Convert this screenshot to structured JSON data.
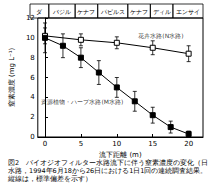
{
  "chart_data": {
    "type": "line",
    "title": "図2　バイオジオフィルター水路流下に伴う窒素濃度の変化（日水路，1994年6月18から26日における1日1回の連続調査結果。縦線は，標準偏差を示す）",
    "x_label": "流下距離 (m)",
    "y_label": "窒素濃度 (mg L⁻¹)",
    "xlim": [
      -1,
      22
    ],
    "xticks": [
      0,
      5,
      10,
      15,
      20
    ],
    "ylim": [
      0,
      12
    ],
    "yticks": [
      0,
      2,
      4,
      6,
      8,
      10,
      12
    ],
    "grid": false,
    "zones": [
      {
        "label": "ダ",
        "start": -1,
        "end": 1.5
      },
      {
        "label": "バジル",
        "start": 1.5,
        "end": 5
      },
      {
        "label": "ケナフ",
        "start": 5,
        "end": 8
      },
      {
        "label": "パピルス",
        "start": 8,
        "end": 12
      },
      {
        "label": "ケナフ",
        "start": 12,
        "end": 15
      },
      {
        "label": "ディル",
        "start": 15,
        "end": 18
      },
      {
        "label": "エンサイ",
        "start": 18,
        "end": 22
      }
    ],
    "series": [
      {
        "name": "花卉水路(N水路)",
        "color": "#000000",
        "marker": "square_open",
        "line_style": "solid",
        "x": [
          0,
          5,
          10,
          15,
          20
        ],
        "values": [
          10.2,
          9.8,
          9.5,
          9.0,
          8.4
        ],
        "errors": [
          0.8,
          0.6,
          0.6,
          0.7,
          0.8
        ]
      },
      {
        "name": "資源植物・ハーブ水路(M水路)",
        "color": "#000000",
        "marker": "square",
        "line_style": "solid",
        "x": [
          0,
          2.5,
          5,
          7.5,
          10,
          12.5,
          15,
          17.5,
          20
        ],
        "values": [
          10.0,
          9.2,
          8.0,
          6.5,
          5.0,
          3.6,
          2.2,
          1.0,
          0.3
        ],
        "errors": [
          1.5,
          1.2,
          1.0,
          1.2,
          1.0,
          1.0,
          0.8,
          0.6,
          0.3
        ]
      }
    ],
    "annotations": [
      {
        "text": "花卉水路(N水路)",
        "x": 13,
        "y": 10.2
      },
      {
        "text": "資源植物・ハーブ水路(M水路)",
        "x": -0.5,
        "y": 3.6
      }
    ]
  }
}
